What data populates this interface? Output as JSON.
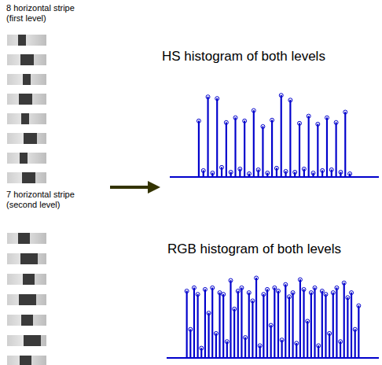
{
  "levels": [
    {
      "label_lines": [
        "8 horizontal stripe",
        "(first level)"
      ],
      "stripe_count": 8
    },
    {
      "label_lines": [
        "7 horizontal stripe",
        "(second level)"
      ],
      "stripe_count": 7
    }
  ],
  "chart_data": [
    {
      "type": "bar",
      "title": "HS histogram of both levels",
      "x": [
        0,
        1,
        2,
        3,
        4,
        5,
        6,
        7,
        8,
        9,
        10,
        11,
        12,
        13,
        14,
        15,
        16,
        17,
        18,
        19,
        20,
        21,
        22,
        23,
        24,
        25,
        26,
        27,
        28,
        29,
        30,
        31,
        32,
        33
      ],
      "values": [
        0.7,
        0.08,
        1.0,
        0.05,
        0.98,
        0.12,
        0.68,
        0.06,
        0.74,
        0.1,
        0.7,
        0.04,
        0.83,
        0.09,
        0.63,
        0.05,
        0.71,
        0.11,
        1.02,
        0.07,
        0.96,
        0.06,
        0.67,
        0.1,
        0.76,
        0.05,
        0.66,
        0.08,
        0.74,
        0.09,
        0.68,
        0.06,
        0.81,
        0.04
      ],
      "color": "#0000cc",
      "marker": "circle",
      "xlim": [
        -0.5,
        33.5
      ],
      "ylim": [
        0,
        1.1
      ],
      "grid": false,
      "tick_labels": false
    },
    {
      "type": "bar",
      "title": "RGB histogram of both levels",
      "x": [
        0,
        1,
        2,
        3,
        4,
        5,
        6,
        7,
        8,
        9,
        10,
        11,
        12,
        13,
        14,
        15,
        16,
        17,
        18,
        19,
        20,
        21,
        22,
        23,
        24,
        25,
        26,
        27,
        28,
        29,
        30,
        31,
        32,
        33,
        34,
        35,
        36,
        37,
        38,
        39,
        40,
        41,
        42,
        43,
        44,
        45,
        46,
        47
      ],
      "values": [
        0.82,
        0.35,
        0.86,
        0.78,
        0.12,
        0.84,
        0.55,
        0.86,
        0.3,
        0.8,
        0.78,
        0.2,
        0.95,
        0.6,
        0.82,
        0.86,
        0.25,
        0.8,
        0.7,
        0.98,
        0.15,
        0.78,
        0.84,
        0.4,
        0.86,
        0.82,
        0.22,
        0.9,
        0.75,
        0.8,
        0.18,
        0.96,
        0.84,
        0.45,
        0.8,
        0.86,
        0.15,
        0.82,
        0.78,
        0.3,
        0.8,
        0.86,
        0.2,
        0.92,
        0.74,
        0.8,
        0.35,
        0.64
      ],
      "color": "#0000cc",
      "marker": "circle",
      "xlim": [
        -0.5,
        47.5
      ],
      "ylim": [
        0,
        1.1
      ],
      "grid": false,
      "tick_labels": false
    }
  ]
}
